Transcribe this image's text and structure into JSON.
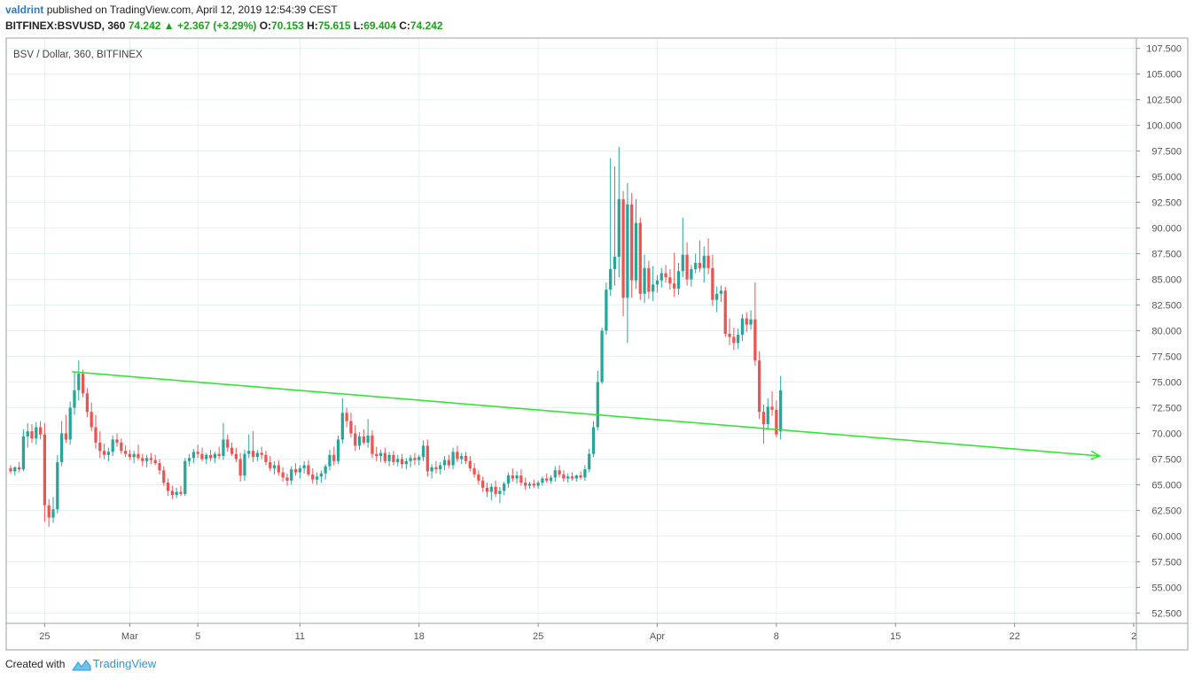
{
  "header": {
    "user": "valdrint",
    "published_text": "published on TradingView.com, April 12, 2019 12:54:39 CEST",
    "symbol": "BITFINEX:BSVUSD, 360",
    "last": "74.242",
    "change": "+2.367 (+3.29%)",
    "o_label": "O:",
    "o": "70.153",
    "h_label": "H:",
    "h": "75.615",
    "l_label": "L:",
    "l": "69.404",
    "c_label": "C:",
    "c": "74.242"
  },
  "footer": {
    "created_with": "Created with",
    "brand": "TradingView"
  },
  "colors": {
    "up": "#26a69a",
    "down": "#ef5350",
    "trendline": "#33e633",
    "grid": "#e6f0f3",
    "axis": "#555555"
  },
  "chart_data": {
    "type": "candlestick",
    "legend": "BSV / Dollar, 360, BITFINEX",
    "ylim": [
      51.5,
      108.5
    ],
    "y_ticks": [
      "52.500",
      "55.000",
      "57.500",
      "60.000",
      "62.500",
      "65.000",
      "67.500",
      "70.000",
      "72.500",
      "75.000",
      "77.500",
      "80.000",
      "82.500",
      "85.000",
      "87.500",
      "90.000",
      "92.500",
      "95.000",
      "97.500",
      "100.000",
      "102.500",
      "105.000",
      "107.500"
    ],
    "x_ticks": [
      {
        "label": "25",
        "day": 0
      },
      {
        "label": "Mar",
        "day": 5
      },
      {
        "label": "5",
        "day": 9
      },
      {
        "label": "11",
        "day": 15
      },
      {
        "label": "18",
        "day": 22
      },
      {
        "label": "25",
        "day": 29
      },
      {
        "label": "Apr",
        "day": 36
      },
      {
        "label": "8",
        "day": 43
      },
      {
        "label": "15",
        "day": 50
      },
      {
        "label": "22",
        "day": 57
      },
      {
        "label": "2",
        "day": 64
      }
    ],
    "x_range_days": [
      -2.0,
      64.0
    ],
    "candle_width_days": 0.17,
    "ohlc_points": [
      [
        -2.0,
        66.6,
        66.9,
        66.1,
        66.3
      ],
      [
        -1.75,
        66.3,
        66.8,
        65.9,
        66.7
      ],
      [
        -1.5,
        66.7,
        67.2,
        66.2,
        66.5
      ],
      [
        -1.25,
        66.5,
        70.4,
        66.3,
        69.7
      ],
      [
        -1.0,
        69.7,
        71.0,
        68.6,
        70.2
      ],
      [
        -0.75,
        70.2,
        70.9,
        69.1,
        69.5
      ],
      [
        -0.5,
        69.5,
        71.1,
        68.9,
        70.6
      ],
      [
        -0.25,
        70.6,
        71.2,
        69.4,
        69.9
      ],
      [
        0.0,
        69.9,
        71.0,
        61.4,
        63.0
      ],
      [
        0.25,
        63.0,
        63.6,
        60.9,
        61.8
      ],
      [
        0.5,
        61.8,
        63.8,
        61.3,
        62.6
      ],
      [
        0.75,
        62.6,
        67.9,
        62.2,
        67.2
      ],
      [
        1.0,
        67.2,
        71.2,
        66.8,
        70.0
      ],
      [
        1.25,
        70.0,
        71.8,
        69.1,
        69.4
      ],
      [
        1.5,
        69.4,
        73.1,
        68.9,
        72.5
      ],
      [
        1.75,
        72.5,
        76.0,
        71.8,
        74.2
      ],
      [
        2.0,
        74.2,
        77.1,
        73.2,
        75.8
      ],
      [
        2.25,
        75.8,
        76.2,
        73.5,
        73.9
      ],
      [
        2.5,
        73.9,
        74.4,
        71.6,
        72.1
      ],
      [
        2.75,
        72.1,
        73.0,
        70.2,
        70.6
      ],
      [
        3.0,
        70.6,
        71.8,
        68.5,
        69.1
      ],
      [
        3.25,
        69.1,
        70.2,
        67.6,
        68.3
      ],
      [
        3.5,
        68.3,
        69.0,
        67.5,
        67.9
      ],
      [
        3.75,
        67.9,
        68.6,
        67.3,
        68.2
      ],
      [
        4.0,
        68.2,
        69.8,
        67.8,
        69.4
      ],
      [
        4.25,
        69.4,
        70.0,
        68.7,
        69.1
      ],
      [
        4.5,
        69.1,
        69.5,
        68.0,
        68.3
      ],
      [
        4.75,
        68.3,
        68.8,
        67.7,
        68.0
      ],
      [
        5.0,
        68.0,
        68.4,
        67.4,
        67.7
      ],
      [
        5.25,
        67.7,
        68.3,
        67.1,
        68.0
      ],
      [
        5.5,
        68.0,
        68.9,
        67.4,
        67.6
      ],
      [
        5.75,
        67.6,
        68.0,
        66.8,
        67.3
      ],
      [
        6.0,
        67.3,
        67.9,
        66.7,
        67.6
      ],
      [
        6.25,
        67.6,
        68.1,
        67.0,
        67.4
      ],
      [
        6.5,
        67.4,
        67.9,
        66.9,
        67.1
      ],
      [
        6.75,
        67.1,
        67.5,
        66.0,
        66.4
      ],
      [
        7.0,
        66.4,
        66.8,
        64.9,
        65.2
      ],
      [
        7.25,
        65.2,
        65.6,
        63.9,
        64.4
      ],
      [
        7.5,
        64.4,
        64.9,
        63.6,
        64.0
      ],
      [
        7.75,
        64.0,
        64.7,
        63.7,
        64.3
      ],
      [
        8.0,
        64.3,
        64.9,
        63.9,
        64.1
      ],
      [
        8.25,
        64.1,
        67.6,
        63.9,
        67.3
      ],
      [
        8.5,
        67.3,
        68.0,
        66.8,
        67.6
      ],
      [
        8.75,
        67.6,
        68.5,
        67.1,
        68.2
      ],
      [
        9.0,
        68.2,
        68.9,
        67.6,
        68.0
      ],
      [
        9.25,
        68.0,
        68.6,
        67.3,
        67.5
      ],
      [
        9.5,
        67.5,
        68.1,
        67.0,
        67.9
      ],
      [
        9.75,
        67.9,
        68.4,
        67.3,
        67.6
      ],
      [
        10.0,
        67.6,
        68.2,
        67.1,
        68.0
      ],
      [
        10.25,
        68.0,
        68.7,
        67.5,
        67.8
      ],
      [
        10.5,
        67.8,
        71.0,
        67.4,
        69.4
      ],
      [
        10.75,
        69.4,
        69.9,
        68.2,
        68.6
      ],
      [
        11.0,
        68.6,
        69.1,
        67.8,
        68.0
      ],
      [
        11.25,
        68.0,
        68.6,
        67.2,
        67.5
      ],
      [
        11.5,
        67.5,
        68.1,
        65.3,
        65.9
      ],
      [
        11.75,
        65.9,
        68.4,
        65.4,
        68.0
      ],
      [
        12.0,
        68.0,
        69.9,
        67.6,
        68.3
      ],
      [
        12.25,
        68.3,
        70.2,
        67.2,
        67.7
      ],
      [
        12.5,
        67.7,
        68.4,
        67.3,
        68.1
      ],
      [
        12.75,
        68.1,
        68.7,
        67.5,
        67.9
      ],
      [
        13.0,
        67.9,
        68.3,
        66.9,
        67.2
      ],
      [
        13.25,
        67.2,
        67.8,
        66.3,
        66.6
      ],
      [
        13.5,
        66.6,
        67.3,
        66.0,
        66.9
      ],
      [
        13.75,
        66.9,
        67.4,
        65.9,
        66.2
      ],
      [
        14.0,
        66.2,
        66.7,
        65.3,
        65.7
      ],
      [
        14.25,
        65.7,
        66.1,
        64.9,
        65.4
      ],
      [
        14.5,
        65.4,
        66.8,
        65.0,
        66.5
      ],
      [
        14.75,
        66.5,
        67.1,
        65.9,
        66.2
      ],
      [
        15.0,
        66.2,
        66.9,
        65.6,
        66.6
      ],
      [
        15.25,
        66.6,
        67.3,
        66.1,
        66.9
      ],
      [
        15.5,
        66.9,
        67.4,
        65.8,
        66.0
      ],
      [
        15.75,
        66.0,
        66.6,
        65.1,
        65.5
      ],
      [
        16.0,
        65.5,
        66.2,
        65.0,
        65.8
      ],
      [
        16.25,
        65.8,
        66.4,
        65.2,
        66.1
      ],
      [
        16.5,
        66.1,
        67.0,
        65.5,
        66.8
      ],
      [
        16.75,
        66.8,
        68.4,
        66.4,
        67.9
      ],
      [
        17.0,
        67.9,
        68.7,
        66.9,
        67.3
      ],
      [
        17.25,
        67.3,
        69.8,
        67.0,
        69.4
      ],
      [
        17.5,
        69.4,
        73.4,
        69.0,
        72.0
      ],
      [
        17.75,
        72.0,
        72.5,
        70.6,
        71.2
      ],
      [
        18.0,
        71.2,
        72.0,
        69.6,
        70.0
      ],
      [
        18.25,
        70.0,
        70.8,
        68.3,
        68.8
      ],
      [
        18.5,
        68.8,
        70.1,
        68.4,
        69.7
      ],
      [
        18.75,
        69.7,
        70.4,
        68.9,
        69.1
      ],
      [
        19.0,
        69.1,
        71.4,
        68.6,
        69.8
      ],
      [
        19.25,
        69.8,
        70.3,
        67.6,
        68.0
      ],
      [
        19.5,
        68.0,
        68.7,
        67.3,
        67.8
      ],
      [
        19.75,
        67.8,
        68.4,
        67.2,
        68.1
      ],
      [
        20.0,
        68.1,
        68.6,
        67.1,
        67.3
      ],
      [
        20.25,
        67.3,
        68.2,
        66.8,
        67.9
      ],
      [
        20.5,
        67.9,
        68.3,
        66.9,
        67.2
      ],
      [
        20.75,
        67.2,
        67.9,
        66.8,
        67.5
      ],
      [
        21.0,
        67.5,
        68.0,
        66.6,
        67.0
      ],
      [
        21.25,
        67.0,
        67.6,
        66.5,
        67.3
      ],
      [
        21.5,
        67.3,
        67.9,
        66.7,
        67.6
      ],
      [
        21.75,
        67.6,
        68.1,
        66.9,
        67.4
      ],
      [
        22.0,
        67.4,
        67.9,
        66.9,
        67.7
      ],
      [
        22.25,
        67.7,
        69.3,
        67.3,
        68.8
      ],
      [
        22.5,
        68.8,
        69.4,
        65.8,
        66.3
      ],
      [
        22.75,
        66.3,
        67.0,
        65.6,
        66.7
      ],
      [
        23.0,
        66.7,
        67.3,
        66.1,
        66.5
      ],
      [
        23.25,
        66.5,
        67.2,
        66.0,
        66.9
      ],
      [
        23.5,
        66.9,
        67.8,
        66.4,
        67.4
      ],
      [
        23.75,
        67.4,
        67.9,
        66.6,
        66.9
      ],
      [
        24.0,
        66.9,
        68.6,
        66.5,
        68.2
      ],
      [
        24.25,
        68.2,
        68.8,
        67.2,
        67.5
      ],
      [
        24.5,
        67.5,
        68.1,
        67.0,
        67.8
      ],
      [
        24.75,
        67.8,
        68.2,
        67.0,
        67.3
      ],
      [
        25.0,
        67.3,
        67.8,
        66.3,
        66.6
      ],
      [
        25.25,
        66.6,
        67.1,
        65.7,
        66.0
      ],
      [
        25.5,
        66.0,
        66.4,
        65.0,
        65.4
      ],
      [
        25.75,
        65.4,
        65.8,
        64.3,
        64.7
      ],
      [
        26.0,
        64.7,
        65.2,
        63.8,
        64.3
      ],
      [
        26.25,
        64.3,
        65.1,
        63.5,
        64.8
      ],
      [
        26.5,
        64.8,
        65.4,
        63.8,
        64.1
      ],
      [
        26.75,
        64.1,
        64.8,
        63.2,
        64.4
      ],
      [
        27.0,
        64.4,
        65.3,
        64.0,
        65.1
      ],
      [
        27.25,
        65.1,
        66.2,
        64.7,
        65.9
      ],
      [
        27.5,
        65.9,
        66.6,
        65.3,
        65.6
      ],
      [
        27.75,
        65.6,
        66.3,
        65.1,
        65.9
      ],
      [
        28.0,
        65.9,
        66.5,
        64.9,
        65.2
      ],
      [
        28.25,
        65.2,
        65.7,
        64.5,
        64.9
      ],
      [
        28.5,
        64.9,
        65.3,
        64.6,
        65.1
      ],
      [
        28.75,
        65.1,
        65.5,
        64.7,
        64.9
      ],
      [
        29.0,
        64.9,
        65.4,
        64.6,
        65.2
      ],
      [
        29.25,
        65.2,
        65.8,
        64.9,
        65.6
      ],
      [
        29.5,
        65.6,
        66.1,
        65.2,
        65.4
      ],
      [
        29.75,
        65.4,
        65.9,
        65.1,
        65.7
      ],
      [
        30.0,
        65.7,
        66.8,
        65.3,
        66.4
      ],
      [
        30.25,
        66.4,
        66.9,
        65.7,
        66.0
      ],
      [
        30.5,
        66.0,
        66.4,
        65.3,
        65.6
      ],
      [
        30.75,
        65.6,
        66.1,
        65.2,
        65.8
      ],
      [
        31.0,
        65.8,
        66.2,
        65.4,
        65.6
      ],
      [
        31.25,
        65.6,
        66.0,
        65.3,
        65.9
      ],
      [
        31.5,
        65.9,
        66.3,
        65.5,
        65.7
      ],
      [
        31.75,
        65.7,
        66.9,
        65.4,
        66.5
      ],
      [
        32.0,
        66.5,
        68.5,
        66.2,
        68.0
      ],
      [
        32.25,
        68.0,
        71.2,
        67.7,
        70.6
      ],
      [
        32.5,
        70.6,
        76.1,
        70.3,
        75.0
      ],
      [
        32.75,
        75.0,
        80.3,
        74.8,
        80.0
      ],
      [
        33.0,
        80.0,
        84.7,
        79.6,
        84.0
      ],
      [
        33.25,
        84.0,
        96.8,
        83.4,
        86.0
      ],
      [
        33.5,
        86.0,
        96.0,
        84.4,
        87.2
      ],
      [
        33.75,
        87.2,
        97.9,
        85.2,
        92.8
      ],
      [
        34.0,
        92.8,
        93.6,
        81.4,
        83.2
      ],
      [
        34.25,
        83.2,
        94.4,
        78.8,
        92.3
      ],
      [
        34.5,
        92.3,
        93.4,
        83.2,
        84.9
      ],
      [
        34.75,
        84.9,
        92.8,
        84.1,
        90.5
      ],
      [
        35.0,
        90.5,
        91.0,
        83.0,
        83.6
      ],
      [
        35.25,
        83.6,
        87.4,
        82.7,
        86.1
      ],
      [
        35.5,
        86.1,
        86.8,
        83.1,
        83.8
      ],
      [
        35.75,
        83.8,
        86.3,
        82.9,
        84.5
      ],
      [
        36.0,
        84.5,
        85.4,
        83.7,
        84.9
      ],
      [
        36.25,
        84.9,
        86.1,
        84.2,
        85.6
      ],
      [
        36.5,
        85.6,
        86.4,
        84.7,
        85.2
      ],
      [
        36.75,
        85.2,
        86.0,
        84.0,
        84.6
      ],
      [
        37.0,
        84.6,
        87.6,
        83.3,
        84.1
      ],
      [
        37.25,
        84.1,
        86.6,
        83.5,
        85.8
      ],
      [
        37.5,
        85.8,
        91.0,
        85.2,
        87.4
      ],
      [
        37.75,
        87.4,
        88.6,
        84.4,
        85.0
      ],
      [
        38.0,
        85.0,
        86.4,
        84.3,
        86.0
      ],
      [
        38.25,
        86.0,
        87.5,
        85.6,
        86.6
      ],
      [
        38.5,
        86.6,
        88.8,
        85.7,
        86.1
      ],
      [
        38.75,
        86.1,
        88.2,
        84.7,
        87.3
      ],
      [
        39.0,
        87.3,
        89.0,
        85.5,
        86.1
      ],
      [
        39.25,
        86.1,
        87.4,
        82.4,
        83.0
      ],
      [
        39.5,
        83.0,
        84.3,
        81.8,
        83.6
      ],
      [
        39.75,
        83.6,
        84.4,
        82.8,
        83.9
      ],
      [
        40.0,
        83.9,
        84.3,
        79.4,
        79.7
      ],
      [
        40.25,
        79.7,
        81.2,
        78.6,
        79.4
      ],
      [
        40.5,
        79.4,
        80.3,
        78.1,
        78.8
      ],
      [
        40.75,
        78.8,
        80.2,
        78.2,
        79.6
      ],
      [
        41.0,
        79.6,
        81.6,
        79.0,
        81.2
      ],
      [
        41.25,
        81.2,
        81.8,
        79.9,
        80.6
      ],
      [
        41.5,
        80.6,
        82.0,
        80.1,
        81.1
      ],
      [
        41.75,
        81.1,
        84.7,
        76.6,
        77.1
      ],
      [
        42.0,
        77.1,
        78.0,
        71.4,
        72.1
      ],
      [
        42.25,
        72.1,
        72.8,
        69.0,
        70.9
      ],
      [
        42.5,
        70.9,
        73.4,
        70.5,
        72.6
      ],
      [
        42.75,
        72.6,
        74.1,
        71.7,
        72.3
      ],
      [
        43.0,
        72.3,
        73.2,
        69.6,
        69.9
      ],
      [
        43.25,
        70.2,
        75.6,
        69.4,
        74.2
      ]
    ],
    "trendline": {
      "start": {
        "day": 1.6,
        "value": 76.0
      },
      "end": {
        "day": 62.0,
        "value": 67.8
      }
    }
  }
}
